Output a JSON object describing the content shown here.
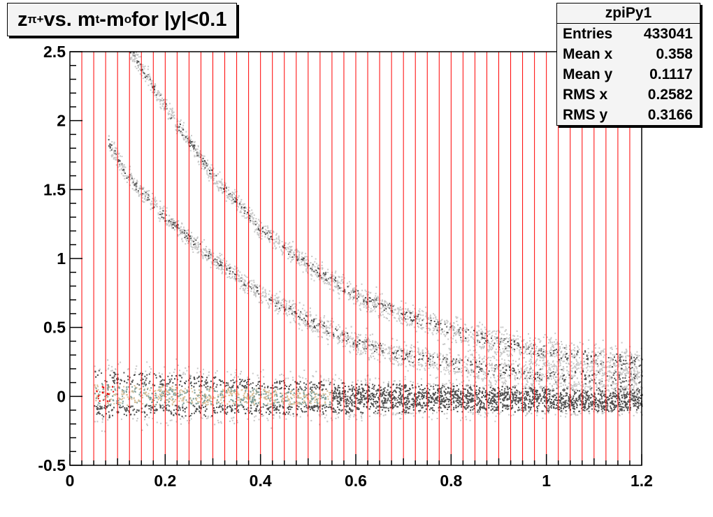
{
  "chart_data": {
    "type": "heatmap",
    "title": {
      "z": "z",
      "z_sub": "π+",
      "middle": " vs. m",
      "m_sub": "t",
      "dash": "-m",
      "o_sub": "o",
      "tail": " for |y|<0.1"
    },
    "xlabel": "",
    "ylabel": "",
    "xlim": [
      0,
      1.2
    ],
    "ylim": [
      -0.5,
      2.5
    ],
    "x_ticks": [
      "0",
      "0.2",
      "0.4",
      "0.6",
      "0.8",
      "1",
      "1.2"
    ],
    "y_ticks": [
      "-0.5",
      "0",
      "0.5",
      "1",
      "1.5",
      "2",
      "2.5"
    ],
    "vertical_bin_lines_x": [
      0.025,
      0.05,
      0.075,
      0.1,
      0.125,
      0.15,
      0.175,
      0.2,
      0.225,
      0.25,
      0.275,
      0.3,
      0.325,
      0.35,
      0.375,
      0.4,
      0.425,
      0.45,
      0.475,
      0.5,
      0.525,
      0.55,
      0.575,
      0.6,
      0.625,
      0.65,
      0.675,
      0.7,
      0.725,
      0.75,
      0.775,
      0.8,
      0.825,
      0.85,
      0.875,
      0.9,
      0.925,
      0.95,
      0.975,
      1.0,
      1.025,
      1.05,
      1.075,
      1.1,
      1.125,
      1.15,
      1.175
    ],
    "bands": [
      {
        "name": "band-pion",
        "points": [
          [
            0.05,
            0.02
          ],
          [
            0.2,
            0.01
          ],
          [
            0.4,
            0.0
          ],
          [
            0.6,
            -0.01
          ],
          [
            0.8,
            -0.01
          ],
          [
            1.0,
            -0.02
          ],
          [
            1.2,
            -0.02
          ]
        ],
        "width_y": [
          0.32,
          0.28,
          0.24,
          0.2,
          0.18,
          0.16,
          0.15
        ]
      },
      {
        "name": "band-kaon",
        "points": [
          [
            0.08,
            1.85
          ],
          [
            0.12,
            1.6
          ],
          [
            0.2,
            1.3
          ],
          [
            0.3,
            1.0
          ],
          [
            0.4,
            0.75
          ],
          [
            0.5,
            0.55
          ],
          [
            0.6,
            0.4
          ],
          [
            0.7,
            0.3
          ],
          [
            0.8,
            0.24
          ],
          [
            0.9,
            0.2
          ],
          [
            1.0,
            0.16
          ],
          [
            1.2,
            0.12
          ]
        ],
        "width_y": [
          0.1,
          0.1,
          0.1,
          0.1,
          0.1,
          0.12,
          0.12,
          0.14,
          0.14,
          0.16,
          0.16,
          0.18
        ]
      },
      {
        "name": "band-proton",
        "points": [
          [
            0.12,
            2.55
          ],
          [
            0.2,
            2.1
          ],
          [
            0.3,
            1.6
          ],
          [
            0.4,
            1.22
          ],
          [
            0.5,
            0.95
          ],
          [
            0.6,
            0.74
          ],
          [
            0.7,
            0.6
          ],
          [
            0.8,
            0.48
          ],
          [
            0.9,
            0.4
          ],
          [
            1.0,
            0.33
          ],
          [
            1.1,
            0.28
          ],
          [
            1.2,
            0.24
          ]
        ],
        "width_y": [
          0.1,
          0.1,
          0.1,
          0.1,
          0.1,
          0.12,
          0.12,
          0.14,
          0.14,
          0.16,
          0.16,
          0.18
        ]
      }
    ],
    "colors": {
      "bin_line": "#ff0000",
      "scatter_light": "#c8c8c8",
      "scatter_dark": "#505050",
      "core_tan": "#d8c09a",
      "core_teal": "#7f9f98",
      "hot": "#e00000"
    }
  },
  "stats": {
    "name": "zpiPy1",
    "rows": [
      {
        "label": "Entries",
        "value": "433041"
      },
      {
        "label": "Mean x",
        "value": "0.358"
      },
      {
        "label": "Mean y",
        "value": "0.1117"
      },
      {
        "label": "RMS x",
        "value": "0.2582"
      },
      {
        "label": "RMS y",
        "value": "0.3166"
      }
    ]
  }
}
